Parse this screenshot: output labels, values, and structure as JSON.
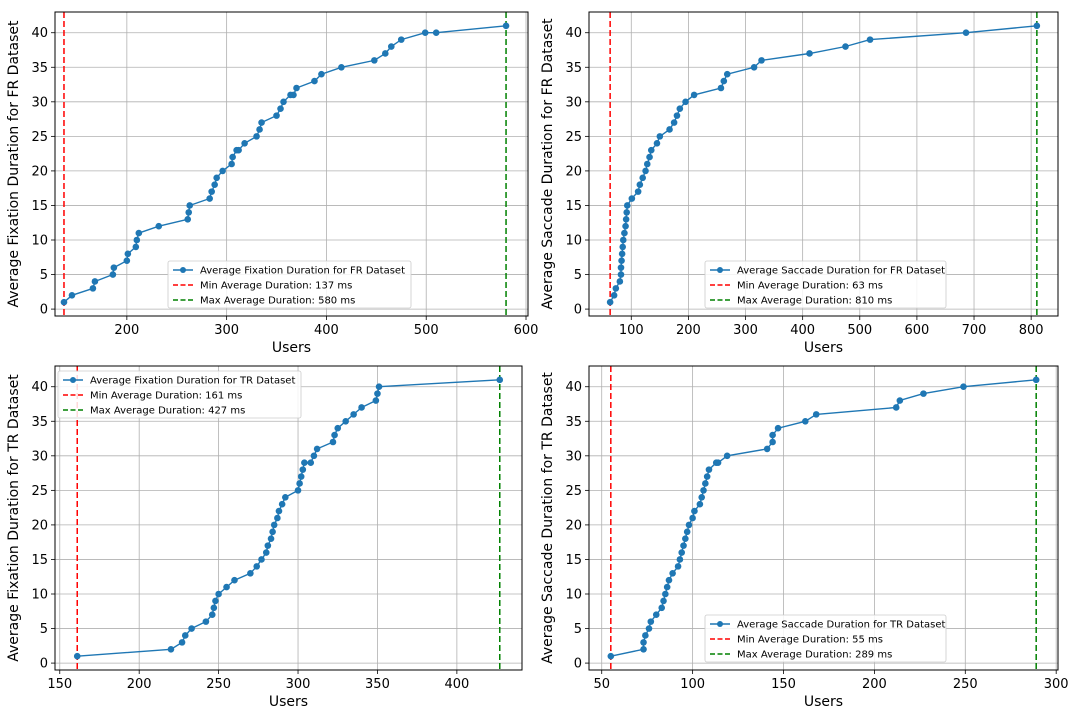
{
  "colors": {
    "series": "#1f77b4",
    "min_line": "#ff0000",
    "max_line": "#008000",
    "grid": "#b0b0b0",
    "axes": "#000000"
  },
  "chart_data": [
    {
      "type": "line",
      "xlabel": "Users",
      "ylabel": "Average Fixation Duration for FR Dataset",
      "xlim": [
        128,
        602
      ],
      "ylim": [
        -1,
        43
      ],
      "xticks": [
        200,
        300,
        400,
        500,
        600
      ],
      "yticks": [
        0,
        5,
        10,
        15,
        20,
        25,
        30,
        35,
        40
      ],
      "grid": true,
      "legend_position": "lower-right",
      "series": [
        {
          "name": "Average Fixation Duration for FR Dataset",
          "marker": "circle",
          "x": [
            137,
            145,
            166,
            168,
            186,
            187,
            200,
            201,
            209,
            210,
            212,
            232,
            261,
            262,
            263,
            283,
            285,
            288,
            290,
            296,
            305,
            306,
            310,
            312,
            318,
            330,
            333,
            335,
            350,
            354,
            357,
            364,
            367,
            370,
            388,
            395,
            415,
            448,
            459,
            465,
            475,
            499,
            510,
            580
          ],
          "y": [
            1,
            2,
            3,
            4,
            5,
            6,
            7,
            8,
            9,
            10,
            11,
            12,
            13,
            14,
            15,
            16,
            17,
            18,
            19,
            20,
            21,
            22,
            23,
            23,
            24,
            25,
            26,
            27,
            28,
            29,
            30,
            31,
            31,
            32,
            33,
            34,
            35,
            36,
            37,
            38,
            39,
            40,
            40,
            41
          ]
        }
      ],
      "ref_lines": [
        {
          "name": "Min Average Duration: 137 ms",
          "x": 137,
          "color": "#ff0000"
        },
        {
          "name": "Max Average Duration: 580 ms",
          "x": 580,
          "color": "#008000"
        }
      ]
    },
    {
      "type": "line",
      "xlabel": "Users",
      "ylabel": "Average Saccade Duration for FR Dataset",
      "xlim": [
        26,
        847
      ],
      "ylim": [
        -1,
        43
      ],
      "xticks": [
        0,
        100,
        200,
        300,
        400,
        500,
        600,
        700,
        800
      ],
      "yticks": [
        0,
        5,
        10,
        15,
        20,
        25,
        30,
        35,
        40
      ],
      "grid": true,
      "legend_position": "lower-right",
      "series": [
        {
          "name": "Average Saccade Duration for FR Dataset",
          "marker": "circle",
          "x": [
            63,
            70,
            73,
            80,
            82,
            82,
            83,
            84,
            85,
            86,
            88,
            90,
            91,
            92,
            93,
            101,
            112,
            115,
            120,
            125,
            128,
            132,
            135,
            145,
            150,
            167,
            175,
            180,
            185,
            195,
            210,
            257,
            262,
            268,
            315,
            328,
            412,
            475,
            518,
            686,
            810
          ],
          "y": [
            1,
            2,
            3,
            4,
            5,
            6,
            7,
            8,
            9,
            10,
            11,
            12,
            13,
            14,
            15,
            16,
            17,
            18,
            19,
            20,
            21,
            22,
            23,
            24,
            25,
            26,
            27,
            28,
            29,
            30,
            31,
            32,
            33,
            34,
            35,
            36,
            37,
            38,
            39,
            40,
            41
          ]
        }
      ],
      "ref_lines": [
        {
          "name": "Min Average Duration: 63 ms",
          "x": 63,
          "color": "#ff0000"
        },
        {
          "name": "Max Average Duration: 810 ms",
          "x": 810,
          "color": "#008000"
        }
      ]
    },
    {
      "type": "line",
      "xlabel": "Users",
      "ylabel": "Average Fixation Duration for TR Dataset",
      "xlim": [
        147,
        441
      ],
      "ylim": [
        -1,
        43
      ],
      "xticks": [
        150,
        200,
        250,
        300,
        350,
        400
      ],
      "yticks": [
        0,
        5,
        10,
        15,
        20,
        25,
        30,
        35,
        40
      ],
      "grid": true,
      "legend_position": "top-left",
      "series": [
        {
          "name": "Average Fixation Duration for TR Dataset",
          "marker": "circle",
          "x": [
            161,
            220,
            227,
            229,
            233,
            242,
            246,
            247,
            248,
            250,
            255,
            260,
            270,
            274,
            277,
            280,
            281,
            283,
            284,
            285,
            287,
            288,
            290,
            292,
            300,
            301,
            302,
            303,
            304,
            308,
            310,
            312,
            322,
            323,
            325,
            330,
            335,
            340,
            349,
            350,
            351,
            427
          ],
          "y": [
            1,
            2,
            3,
            4,
            5,
            6,
            7,
            8,
            9,
            10,
            11,
            12,
            13,
            14,
            15,
            16,
            17,
            18,
            19,
            20,
            21,
            22,
            23,
            24,
            25,
            26,
            27,
            28,
            29,
            29,
            30,
            31,
            32,
            33,
            34,
            35,
            36,
            37,
            38,
            39,
            40,
            41
          ]
        }
      ],
      "ref_lines": [
        {
          "name": "Min Average Duration: 161 ms",
          "x": 161,
          "color": "#ff0000"
        },
        {
          "name": "Max Average Duration: 427 ms",
          "x": 427,
          "color": "#008000"
        }
      ]
    },
    {
      "type": "line",
      "xlabel": "Users",
      "ylabel": "Average Saccade Duration for TR Dataset",
      "xlim": [
        43,
        301
      ],
      "ylim": [
        -1,
        43
      ],
      "xticks": [
        50,
        100,
        150,
        200,
        250,
        300
      ],
      "yticks": [
        0,
        5,
        10,
        15,
        20,
        25,
        30,
        35,
        40
      ],
      "grid": true,
      "legend_position": "lower-right",
      "series": [
        {
          "name": "Average Saccade Duration for TR Dataset",
          "marker": "circle",
          "x": [
            55,
            73,
            73,
            74,
            76,
            77,
            80,
            83,
            84,
            85,
            86,
            87,
            89,
            92,
            93,
            94,
            95,
            96,
            97,
            98,
            100,
            101,
            104,
            105,
            106,
            107,
            108,
            109,
            113,
            114,
            119,
            141,
            144,
            144,
            147,
            162,
            168,
            212,
            214,
            227,
            249,
            289
          ],
          "y": [
            1,
            2,
            3,
            4,
            5,
            6,
            7,
            8,
            9,
            10,
            11,
            12,
            13,
            14,
            15,
            16,
            17,
            18,
            19,
            20,
            21,
            22,
            23,
            24,
            25,
            26,
            27,
            28,
            29,
            29,
            30,
            31,
            32,
            33,
            34,
            35,
            36,
            37,
            38,
            39,
            40,
            41
          ]
        }
      ],
      "ref_lines": [
        {
          "name": "Min Average Duration: 55 ms",
          "x": 55,
          "color": "#ff0000"
        },
        {
          "name": "Max Average Duration: 289 ms",
          "x": 289,
          "color": "#008000"
        }
      ]
    }
  ]
}
